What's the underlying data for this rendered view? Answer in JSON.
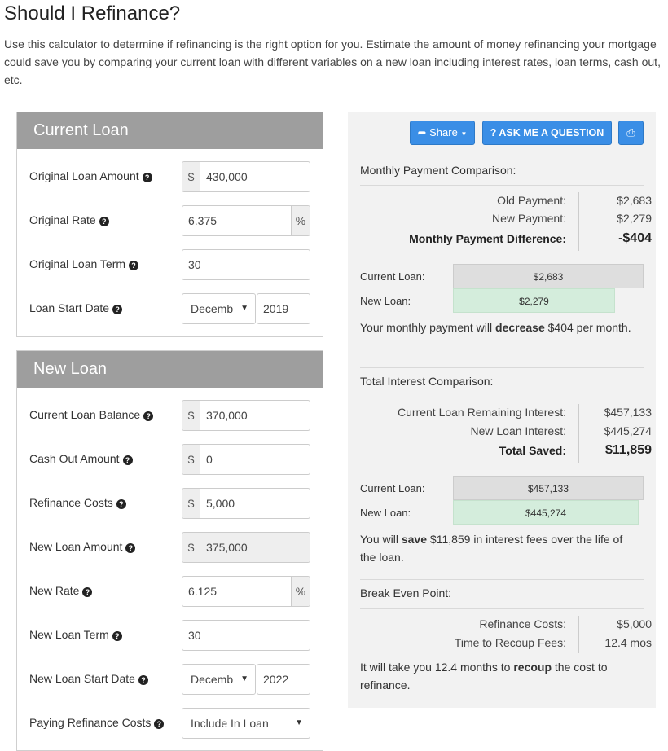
{
  "title": "Should I Refinance?",
  "intro": "Use this calculator to determine if refinancing is the right option for you. Estimate the amount of money refinancing your mortgage could save you by comparing your current loan with different variables on a new loan including interest rates, loan terms, cash out, etc.",
  "current_loan": {
    "heading": "Current Loan",
    "original_amount": {
      "label": "Original Loan Amount",
      "prefix": "$",
      "value": "430,000"
    },
    "original_rate": {
      "label": "Original Rate",
      "suffix": "%",
      "value": "6.375"
    },
    "original_term": {
      "label": "Original Loan Term",
      "value": "30"
    },
    "start_date": {
      "label": "Loan Start Date",
      "month": "Decemb",
      "year": "2019"
    }
  },
  "new_loan": {
    "heading": "New Loan",
    "balance": {
      "label": "Current Loan Balance",
      "prefix": "$",
      "value": "370,000"
    },
    "cash_out": {
      "label": "Cash Out Amount",
      "prefix": "$",
      "value": "0"
    },
    "refi_costs": {
      "label": "Refinance Costs",
      "prefix": "$",
      "value": "5,000"
    },
    "amount": {
      "label": "New Loan Amount",
      "prefix": "$",
      "value": "375,000"
    },
    "rate": {
      "label": "New Rate",
      "suffix": "%",
      "value": "6.125"
    },
    "term": {
      "label": "New Loan Term",
      "value": "30"
    },
    "start_date": {
      "label": "New Loan Start Date",
      "month": "Decemb",
      "year": "2022"
    },
    "paying_costs": {
      "label": "Paying Refinance Costs",
      "value": "Include In Loan"
    }
  },
  "toolbar": {
    "share": "Share",
    "ask": "ASK ME A QUESTION"
  },
  "monthly": {
    "title": "Monthly Payment Comparison:",
    "old_label": "Old Payment:",
    "old_value": "$2,683",
    "new_label": "New Payment:",
    "new_value": "$2,279",
    "diff_label": "Monthly Payment Difference:",
    "diff_value": "-$404",
    "bar_current_label": "Current Loan:",
    "bar_current_value": "$2,683",
    "bar_new_label": "New Loan:",
    "bar_new_value": "$2,279",
    "bar_new_fraction": 0.849,
    "summary_pre": "Your monthly payment will ",
    "summary_bold": "decrease",
    "summary_post": " $404 per month."
  },
  "interest": {
    "title": "Total Interest Comparison:",
    "cur_label": "Current Loan Remaining Interest:",
    "cur_value": "$457,133",
    "new_label": "New Loan Interest:",
    "new_value": "$445,274",
    "saved_label": "Total Saved:",
    "saved_value": "$11,859",
    "bar_current_label": "Current Loan:",
    "bar_current_value": "$457,133",
    "bar_new_label": "New Loan:",
    "bar_new_value": "$445,274",
    "bar_new_fraction": 0.974,
    "summary_pre": "You will ",
    "summary_bold": "save",
    "summary_post": " $11,859 in interest fees over the life of the loan."
  },
  "breakeven": {
    "title": "Break Even Point:",
    "costs_label": "Refinance Costs:",
    "costs_value": "$5,000",
    "time_label": "Time to Recoup Fees:",
    "time_value": "12.4 mos",
    "summary_pre": "It will take you 12.4 months to ",
    "summary_bold": "recoup",
    "summary_post": " the cost to refinance."
  },
  "colors": {
    "header_gray": "#9e9e9e",
    "button_blue": "#3a8ee6",
    "bar_green": "#d4eddc",
    "bar_gray": "#dedede"
  },
  "icons": [
    "question-circle-icon",
    "share-icon",
    "question-icon",
    "print-icon",
    "chevron-down-icon"
  ]
}
